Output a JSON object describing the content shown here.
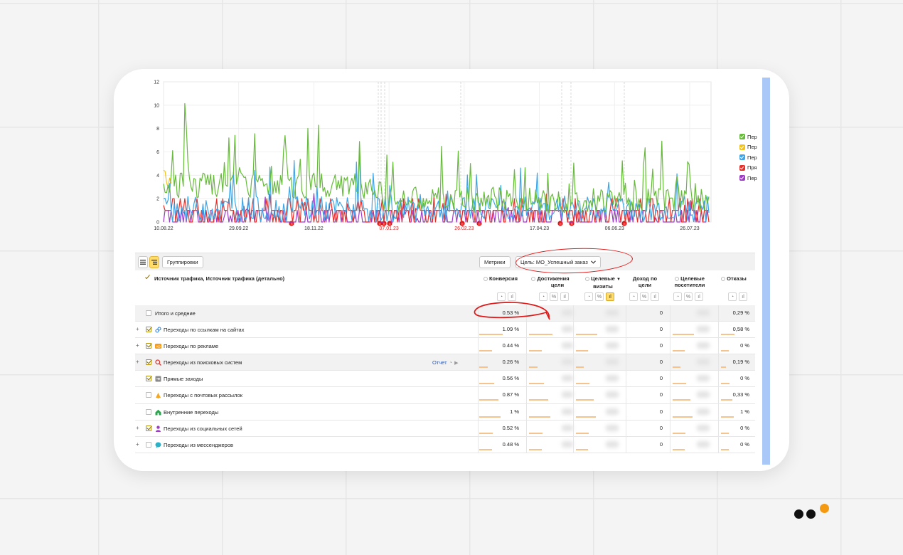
{
  "chart": {
    "y_ticks": [
      "0",
      "2",
      "4",
      "6",
      "8",
      "10",
      "12"
    ],
    "x_ticks": [
      {
        "label": "10.08.22",
        "red": false
      },
      {
        "label": "29.09.22",
        "red": false
      },
      {
        "label": "18.11.22",
        "red": false
      },
      {
        "label": "07.01.23",
        "red": true
      },
      {
        "label": "26.02.23",
        "red": true
      },
      {
        "label": "17.04.23",
        "red": false
      },
      {
        "label": "06.06.23",
        "red": false
      },
      {
        "label": "26.07.23",
        "red": false
      }
    ],
    "marker_label": "П",
    "legend": [
      {
        "label": "Пер",
        "color": "#66bb3a"
      },
      {
        "label": "Пер",
        "color": "#f2c21b"
      },
      {
        "label": "Пер",
        "color": "#3ea6e8"
      },
      {
        "label": "Пря",
        "color": "#e8302a"
      },
      {
        "label": "Пер",
        "color": "#9d3cc6"
      }
    ]
  },
  "toolbar": {
    "groupings_label": "Группировки",
    "metrics_label": "Метрики",
    "goal_label": "Цель: МО_Успешный заказ"
  },
  "columns": {
    "dimension": "Источник трафика, Источник трафика (детально)",
    "conversion": "Конверсия",
    "goal_reaches_1": "Достижения",
    "goal_reaches_2": "цели",
    "target_visits_1": "Целевые",
    "target_visits_2": "визиты",
    "goal_revenue_1": "Доход по",
    "goal_revenue_2": "цели",
    "target_visitors_1": "Целевые",
    "target_visitors_2": "посетители",
    "bounces": "Отказы"
  },
  "report_label": "Отчет",
  "rows": [
    {
      "label": "Итого и средние",
      "conversion": "0.53 %",
      "revenue": "0",
      "bounces": "0,29 %",
      "checked": false,
      "expand": false,
      "icon": "none",
      "total": true,
      "bar": 0
    },
    {
      "label": "Переходы по ссылкам на сайтах",
      "conversion": "1.09 %",
      "revenue": "0",
      "bounces": "0,58 %",
      "checked": true,
      "expand": true,
      "icon": "link",
      "bar": 0.55
    },
    {
      "label": "Переходы по рекламе",
      "conversion": "0.44 %",
      "revenue": "0",
      "bounces": "0 %",
      "checked": true,
      "expand": true,
      "icon": "ad",
      "bar": 0.3
    },
    {
      "label": "Переходы из поисковых систем",
      "conversion": "0.26 %",
      "revenue": "0",
      "bounces": "0,19 %",
      "checked": true,
      "expand": true,
      "icon": "search",
      "bar": 0.2,
      "highlight": true
    },
    {
      "label": "Прямые заходы",
      "conversion": "0.56 %",
      "revenue": "0",
      "bounces": "0 %",
      "checked": true,
      "expand": false,
      "icon": "direct",
      "bar": 0.35
    },
    {
      "label": "Переходы с почтовых рассылок",
      "conversion": "0.87 %",
      "revenue": "0",
      "bounces": "0,33 %",
      "checked": false,
      "expand": false,
      "icon": "mail",
      "bar": 0.45
    },
    {
      "label": "Внутренние переходы",
      "conversion": "1 %",
      "revenue": "0",
      "bounces": "1 %",
      "checked": false,
      "expand": false,
      "icon": "home",
      "bar": 0.5
    },
    {
      "label": "Переходы из социальных сетей",
      "conversion": "0.52 %",
      "revenue": "0",
      "bounces": "0 %",
      "checked": true,
      "expand": true,
      "icon": "social",
      "bar": 0.32
    },
    {
      "label": "Переходы из мессенджеров",
      "conversion": "0.48 %",
      "revenue": "0",
      "bounces": "0 %",
      "checked": false,
      "expand": true,
      "icon": "messenger",
      "bar": 0.3
    }
  ],
  "colors": {
    "green": "#66bb3a",
    "yellow": "#f2c21b",
    "blue": "#3ea6e8",
    "red": "#e8302a",
    "purple": "#9d3cc6",
    "accent_select": "#ffdc6b",
    "annotation": "#e01818",
    "bar": "#f5c48e"
  }
}
